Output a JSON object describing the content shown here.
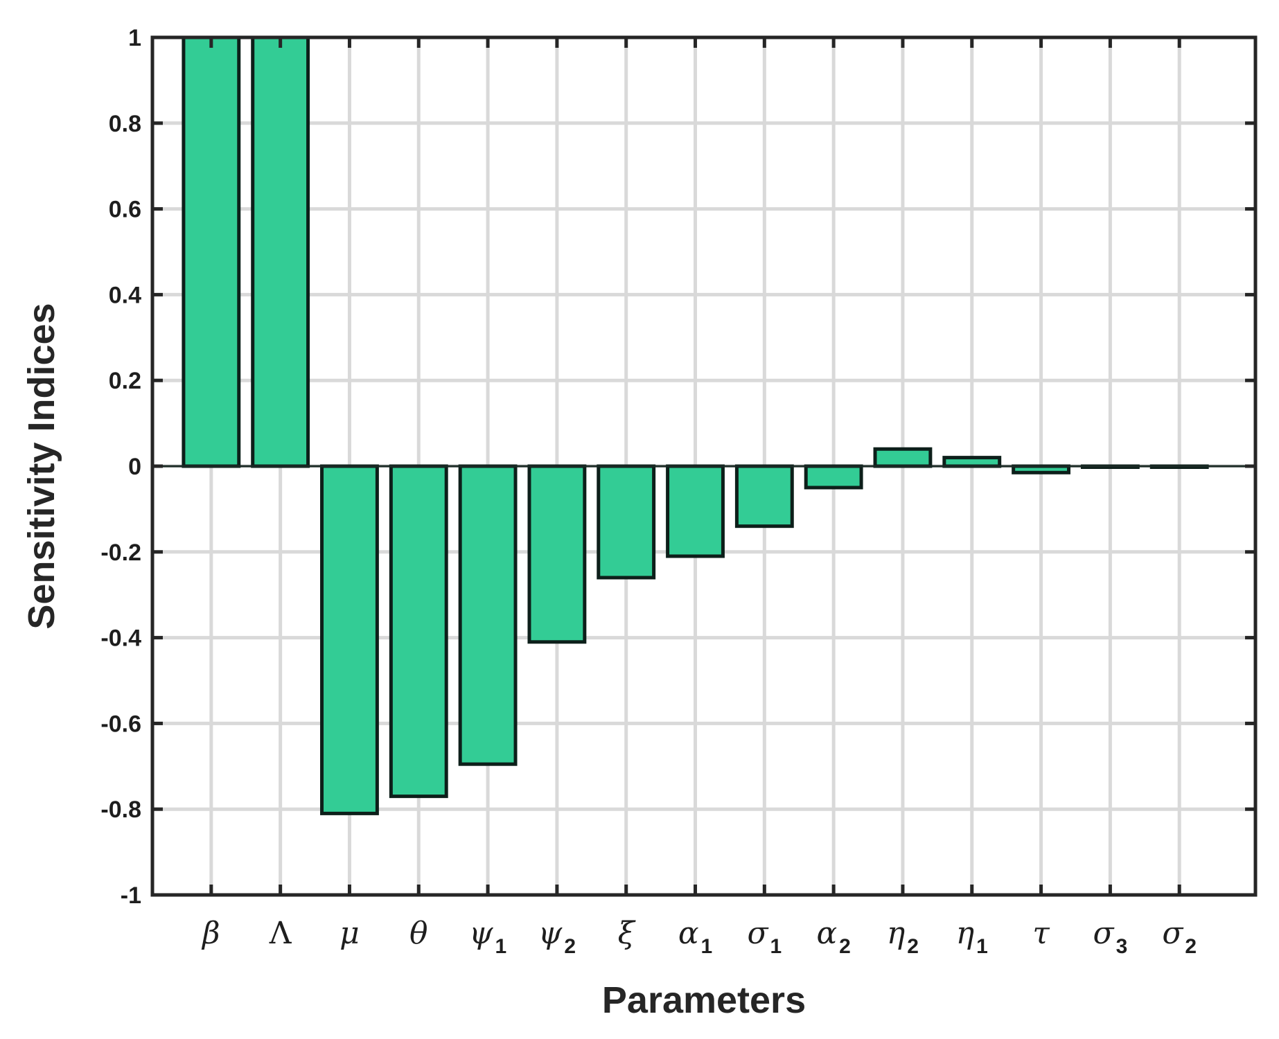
{
  "chart_data": {
    "type": "bar",
    "xlabel": "Parameters",
    "ylabel": "Sensitivity Indices",
    "ylim": [
      -1,
      1
    ],
    "yticks": [
      1,
      0.8,
      0.6,
      0.4,
      0.2,
      0,
      -0.2,
      -0.4,
      -0.6,
      -0.8,
      -1
    ],
    "ytick_labels": [
      "1",
      "0.8",
      "0.6",
      "0.4",
      "0.2",
      "0",
      "-0.2",
      "-0.4",
      "-0.6",
      "-0.8",
      "-1"
    ],
    "categories": [
      {
        "symbol": "β",
        "sub": ""
      },
      {
        "symbol": "Λ",
        "sub": ""
      },
      {
        "symbol": "μ",
        "sub": ""
      },
      {
        "symbol": "θ",
        "sub": ""
      },
      {
        "symbol": "ψ",
        "sub": "1"
      },
      {
        "symbol": "ψ",
        "sub": "2"
      },
      {
        "symbol": "ξ",
        "sub": ""
      },
      {
        "symbol": "α",
        "sub": "1"
      },
      {
        "symbol": "σ",
        "sub": "1"
      },
      {
        "symbol": "α",
        "sub": "2"
      },
      {
        "symbol": "η",
        "sub": "2"
      },
      {
        "symbol": "η",
        "sub": "1"
      },
      {
        "symbol": "τ",
        "sub": ""
      },
      {
        "symbol": "σ",
        "sub": "3"
      },
      {
        "symbol": "σ",
        "sub": "2"
      }
    ],
    "values": [
      1,
      1,
      -0.81,
      -0.77,
      -0.695,
      -0.41,
      -0.26,
      -0.21,
      -0.14,
      -0.05,
      0.04,
      0.02,
      -0.015,
      -0.002,
      -0.002
    ],
    "grid": true,
    "bar_color": "#33cc95",
    "bar_edge_color": "#0d1f1a"
  }
}
